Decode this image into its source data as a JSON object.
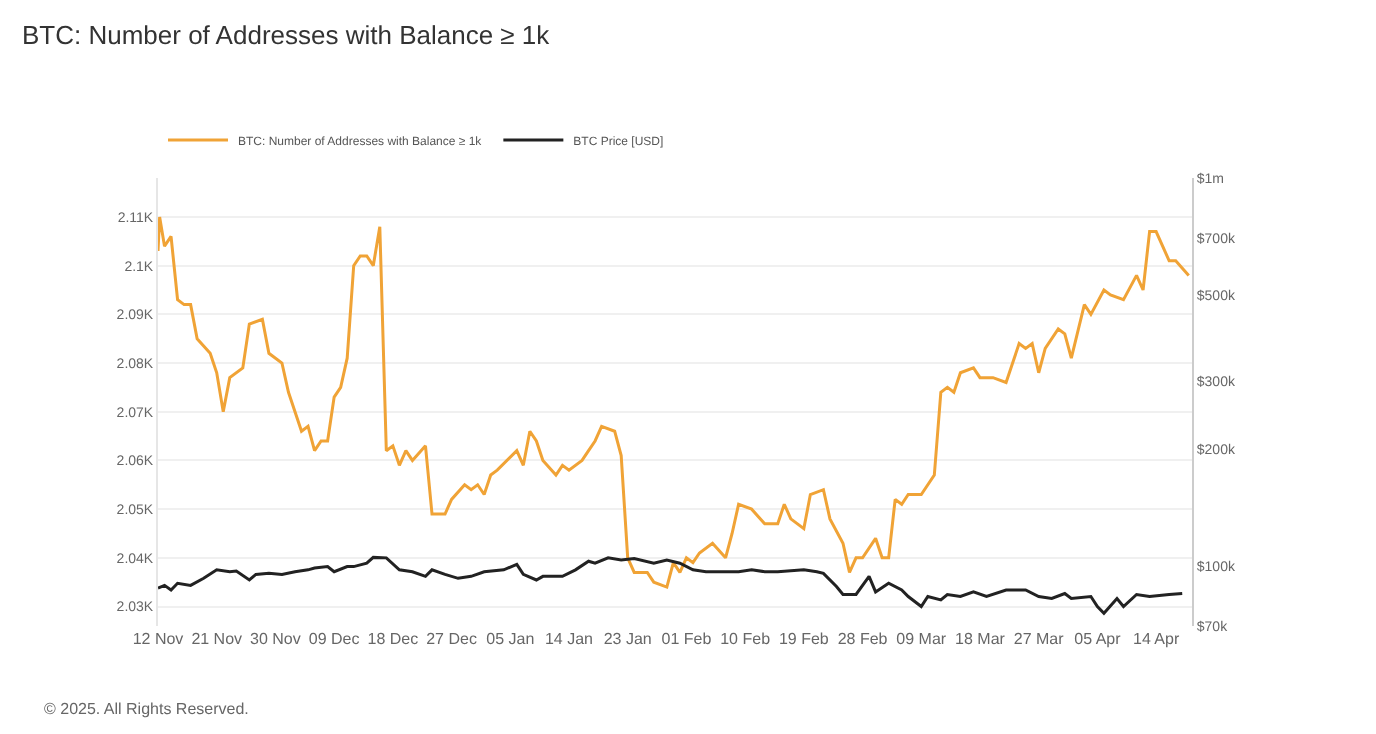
{
  "chart_data": {
    "type": "line",
    "title": "BTC: Number of Addresses with Balance ≥ 1k",
    "series": [
      {
        "name": "BTC: Number of Addresses with Balance ≥ 1k",
        "color": "#f0a336",
        "axis": "y",
        "x": [
          "2024-11-12T00:00",
          "2024-11-12T06:00",
          "2024-11-13",
          "2024-11-14",
          "2024-11-15",
          "2024-11-16",
          "2024-11-17",
          "2024-11-18",
          "2024-11-20",
          "2024-11-21",
          "2024-11-22",
          "2024-11-23",
          "2024-11-25",
          "2024-11-26",
          "2024-11-28",
          "2024-11-29",
          "2024-12-01",
          "2024-12-02",
          "2024-12-04",
          "2024-12-05",
          "2024-12-06",
          "2024-12-07",
          "2024-12-08",
          "2024-12-09",
          "2024-12-10",
          "2024-12-11",
          "2024-12-12",
          "2024-12-13",
          "2024-12-14",
          "2024-12-15",
          "2024-12-16",
          "2024-12-17",
          "2024-12-18",
          "2024-12-19",
          "2024-12-20",
          "2024-12-21",
          "2024-12-23",
          "2024-12-24",
          "2024-12-26",
          "2024-12-27",
          "2024-12-29",
          "2024-12-30",
          "2024-12-31",
          "2025-01-01",
          "2025-01-02",
          "2025-01-03",
          "2025-01-06",
          "2025-01-07",
          "2025-01-08",
          "2025-01-09",
          "2025-01-10",
          "2025-01-12",
          "2025-01-13",
          "2025-01-14",
          "2025-01-16",
          "2025-01-17",
          "2025-01-18",
          "2025-01-19",
          "2025-01-21",
          "2025-01-22",
          "2025-01-23",
          "2025-01-24",
          "2025-01-25",
          "2025-01-26",
          "2025-01-27",
          "2025-01-29",
          "2025-01-30",
          "2025-01-31",
          "2025-02-01",
          "2025-02-02",
          "2025-02-03",
          "2025-02-05",
          "2025-02-07",
          "2025-02-08",
          "2025-02-09",
          "2025-02-11",
          "2025-02-13",
          "2025-02-15",
          "2025-02-16",
          "2025-02-17",
          "2025-02-19",
          "2025-02-20",
          "2025-02-22",
          "2025-02-23",
          "2025-02-25",
          "2025-02-26",
          "2025-02-27",
          "2025-02-28",
          "2025-03-02",
          "2025-03-03",
          "2025-03-04",
          "2025-03-05",
          "2025-03-06",
          "2025-03-07",
          "2025-03-09",
          "2025-03-11",
          "2025-03-12",
          "2025-03-13",
          "2025-03-14",
          "2025-03-15",
          "2025-03-17",
          "2025-03-18",
          "2025-03-20",
          "2025-03-22",
          "2025-03-24",
          "2025-03-25",
          "2025-03-26",
          "2025-03-27",
          "2025-03-28",
          "2025-03-30",
          "2025-03-31",
          "2025-04-01",
          "2025-04-03",
          "2025-04-04",
          "2025-04-06",
          "2025-04-07",
          "2025-04-09",
          "2025-04-11",
          "2025-04-12",
          "2025-04-13",
          "2025-04-14",
          "2025-04-16",
          "2025-04-17",
          "2025-04-19"
        ],
        "values": [
          2103,
          2110,
          2104,
          2106,
          2093,
          2092,
          2092,
          2085,
          2082,
          2078,
          2070,
          2077,
          2079,
          2088,
          2089,
          2082,
          2080,
          2074,
          2066,
          2067,
          2062,
          2064,
          2064,
          2073,
          2075,
          2081,
          2100,
          2102,
          2102,
          2100,
          2108,
          2062,
          2063,
          2059,
          2062,
          2060,
          2063,
          2049,
          2049,
          2052,
          2055,
          2054,
          2055,
          2053,
          2057,
          2058,
          2062,
          2059,
          2066,
          2064,
          2060,
          2057,
          2059,
          2058,
          2060,
          2062,
          2064,
          2067,
          2066,
          2061,
          2040,
          2037,
          2037,
          2037,
          2035,
          2034,
          2039,
          2037,
          2040,
          2039,
          2041,
          2043,
          2040,
          2045,
          2051,
          2050,
          2047,
          2047,
          2051,
          2048,
          2046,
          2053,
          2054,
          2048,
          2043,
          2037,
          2040,
          2040,
          2044,
          2040,
          2040,
          2052,
          2051,
          2053,
          2053,
          2057,
          2074,
          2075,
          2074,
          2078,
          2079,
          2077,
          2077,
          2076,
          2084,
          2083,
          2084,
          2078,
          2083,
          2087,
          2086,
          2081,
          2092,
          2090,
          2095,
          2094,
          2093,
          2098,
          2095,
          2107,
          2107,
          2101,
          2101,
          2098
        ]
      },
      {
        "name": "BTC Price [USD]",
        "color": "#222222",
        "axis": "y2",
        "x": [
          "2024-11-12",
          "2024-11-13",
          "2024-11-14",
          "2024-11-15",
          "2024-11-17",
          "2024-11-19",
          "2024-11-21",
          "2024-11-23",
          "2024-11-24",
          "2024-11-26",
          "2024-11-27",
          "2024-11-29",
          "2024-12-01",
          "2024-12-03",
          "2024-12-05",
          "2024-12-06",
          "2024-12-08",
          "2024-12-09",
          "2024-12-11",
          "2024-12-12",
          "2024-12-14",
          "2024-12-15",
          "2024-12-17",
          "2024-12-19",
          "2024-12-21",
          "2024-12-23",
          "2024-12-24",
          "2024-12-26",
          "2024-12-28",
          "2024-12-30",
          "2025-01-01",
          "2025-01-04",
          "2025-01-06",
          "2025-01-07",
          "2025-01-09",
          "2025-01-10",
          "2025-01-13",
          "2025-01-15",
          "2025-01-17",
          "2025-01-18",
          "2025-01-20",
          "2025-01-22",
          "2025-01-24",
          "2025-01-27",
          "2025-01-29",
          "2025-01-31",
          "2025-02-02",
          "2025-02-04",
          "2025-02-06",
          "2025-02-09",
          "2025-02-11",
          "2025-02-13",
          "2025-02-15",
          "2025-02-19",
          "2025-02-21",
          "2025-02-22",
          "2025-02-24",
          "2025-02-25",
          "2025-02-27",
          "2025-03-01",
          "2025-03-02",
          "2025-03-04",
          "2025-03-06",
          "2025-03-07",
          "2025-03-09",
          "2025-03-10",
          "2025-03-12",
          "2025-03-13",
          "2025-03-15",
          "2025-03-17",
          "2025-03-19",
          "2025-03-22",
          "2025-03-25",
          "2025-03-27",
          "2025-03-29",
          "2025-03-31",
          "2025-04-01",
          "2025-04-04",
          "2025-04-05",
          "2025-04-06",
          "2025-04-08",
          "2025-04-09",
          "2025-04-11",
          "2025-04-13",
          "2025-04-16",
          "2025-04-18"
        ],
        "values": [
          87700,
          89100,
          86700,
          90200,
          89100,
          92900,
          97700,
          96600,
          97000,
          92000,
          95100,
          95700,
          95100,
          96600,
          97700,
          98800,
          99600,
          96600,
          99600,
          99600,
          101600,
          105200,
          104900,
          97700,
          96600,
          94000,
          97700,
          95100,
          92900,
          94000,
          96600,
          97700,
          100900,
          95100,
          92000,
          94000,
          94000,
          97700,
          102800,
          101600,
          104900,
          103600,
          104500,
          101600,
          103600,
          101600,
          97700,
          96600,
          96600,
          96600,
          97700,
          96600,
          96600,
          97700,
          96600,
          95700,
          88500,
          84400,
          84400,
          94000,
          85700,
          90200,
          86700,
          83400,
          78600,
          83400,
          81700,
          84400,
          83400,
          85700,
          83400,
          86700,
          86700,
          83400,
          82400,
          84900,
          82400,
          83400,
          78600,
          75500,
          82400,
          78600,
          84400,
          83400,
          84400,
          84900
        ]
      }
    ],
    "xlim": [
      "2024-11-12",
      "2025-04-19T12:00"
    ],
    "xticks": [
      {
        "value": "2024-11-12",
        "label": "12 Nov"
      },
      {
        "value": "2024-11-21",
        "label": "21 Nov"
      },
      {
        "value": "2024-11-30",
        "label": "30 Nov"
      },
      {
        "value": "2024-12-09",
        "label": "09 Dec"
      },
      {
        "value": "2024-12-18",
        "label": "18 Dec"
      },
      {
        "value": "2024-12-27",
        "label": "27 Dec"
      },
      {
        "value": "2025-01-05",
        "label": "05 Jan"
      },
      {
        "value": "2025-01-14",
        "label": "14 Jan"
      },
      {
        "value": "2025-01-23",
        "label": "23 Jan"
      },
      {
        "value": "2025-02-01",
        "label": "01 Feb"
      },
      {
        "value": "2025-02-10",
        "label": "10 Feb"
      },
      {
        "value": "2025-02-19",
        "label": "19 Feb"
      },
      {
        "value": "2025-02-28",
        "label": "28 Feb"
      },
      {
        "value": "2025-03-09",
        "label": "09 Mar"
      },
      {
        "value": "2025-03-18",
        "label": "18 Mar"
      },
      {
        "value": "2025-03-27",
        "label": "27 Mar"
      },
      {
        "value": "2025-04-05",
        "label": "05 Apr"
      },
      {
        "value": "2025-04-14",
        "label": "14 Apr"
      }
    ],
    "ylim": [
      2026,
      2118
    ],
    "yticks": [
      {
        "value": 2030,
        "label": "2.03K"
      },
      {
        "value": 2040,
        "label": "2.04K"
      },
      {
        "value": 2050,
        "label": "2.05K"
      },
      {
        "value": 2060,
        "label": "2.06K"
      },
      {
        "value": 2070,
        "label": "2.07K"
      },
      {
        "value": 2080,
        "label": "2.08K"
      },
      {
        "value": 2090,
        "label": "2.09K"
      },
      {
        "value": 2100,
        "label": "2.1K"
      },
      {
        "value": 2110,
        "label": "2.11K"
      }
    ],
    "log": "y2",
    "y2lim": [
      70000,
      1000000
    ],
    "y2ticks": [
      {
        "value": 70000,
        "label": "$70k"
      },
      {
        "value": 100000,
        "label": "$100k"
      },
      {
        "value": 200000,
        "label": "$200k"
      },
      {
        "value": 300000,
        "label": "$300k"
      },
      {
        "value": 500000,
        "label": "$500k"
      },
      {
        "value": 700000,
        "label": "$700k"
      },
      {
        "value": 1000000,
        "label": "$1m"
      }
    ],
    "grid": "y",
    "legend": "top left",
    "marker": "none",
    "line_style": "solid",
    "annotations": [
      "© 2025. All Rights Reserved."
    ]
  }
}
